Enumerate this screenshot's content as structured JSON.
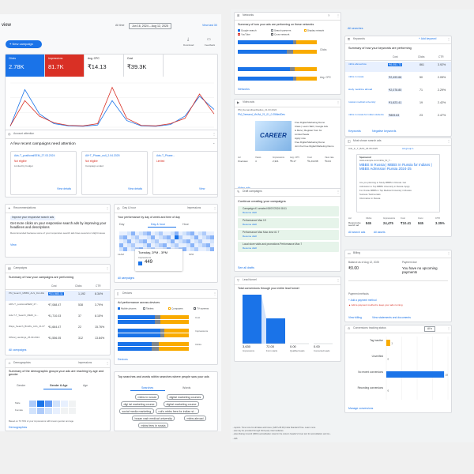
{
  "overview": {
    "title": "view",
    "all_time": "All time",
    "date_range": "Jun 16, 2024 – Aug 12, 2025",
    "view_last": "View last 30",
    "new_campaign": "New campaign",
    "download": "Download",
    "feedback": "Feedback",
    "metrics": [
      {
        "label": "Clicks",
        "value": "2.78K",
        "bg": "#1a73e8",
        "fg": "#ffffff"
      },
      {
        "label": "Impressions",
        "value": "81.7K",
        "bg": "#d93025",
        "fg": "#ffffff"
      },
      {
        "label": "Avg. CPC",
        "value": "₹14.13",
        "bg": "#ffffff",
        "fg": "#202124"
      },
      {
        "label": "Cost",
        "value": "₹39.3K",
        "bg": "#ffffff",
        "fg": "#202124"
      }
    ],
    "chart_x_left": "Jun 16, 2024",
    "chart_x_right": "Aug 12, 2025"
  },
  "chart_data": {
    "type": "line",
    "x": [
      0,
      1,
      2,
      3,
      4,
      5,
      6,
      7,
      8,
      9,
      10,
      11,
      12,
      13,
      14
    ],
    "series": [
      {
        "name": "Clicks",
        "color": "#1a73e8",
        "values": [
          2,
          85,
          30,
          8,
          3,
          2,
          5,
          60,
          15,
          3,
          2,
          6,
          25,
          70,
          40
        ]
      },
      {
        "name": "Impressions",
        "color": "#d93025",
        "values": [
          3,
          60,
          25,
          10,
          4,
          3,
          8,
          90,
          20,
          4,
          3,
          8,
          20,
          75,
          30
        ]
      }
    ],
    "ylim": [
      0,
      100
    ]
  },
  "account_attention": {
    "header": "Account attention",
    "title": "A few recent campaigns need attention",
    "items": [
      {
        "name": "Ads-T_positionalSEM_27.03.2024",
        "status": "Not eligible",
        "sub": "Limited by budget",
        "link": "View details"
      },
      {
        "name": "All+T_Phase_null_2.04.2025",
        "status": "Not eligible",
        "sub": "Campaign ended",
        "link": "View details"
      },
      {
        "name": "Ads-T_Phase...",
        "status": "Limited",
        "sub": "",
        "link": "View"
      }
    ]
  },
  "recommendations": {
    "header": "Recommendations",
    "badge": "Improve your responsive search ads",
    "title": "Get more clicks on your responsive search ads by improving your headlines and descriptions",
    "desc": "Recommended because some of your responsive search ads have several or slight issues",
    "view": "View"
  },
  "day_hour": {
    "header": "Day & hour",
    "dropdown": "Impressions",
    "title": "Your performance by day of week and time of day",
    "tabs": [
      "Day",
      "Day & hour",
      "Hour"
    ],
    "hours": [
      "12AM",
      "6AM",
      "12PM",
      "6PM"
    ],
    "tooltip_time": "Tuesday, 2PM - 3PM",
    "tooltip_metric": "Impressions",
    "tooltip_value": "449",
    "all_campaigns": "All campaigns"
  },
  "campaigns": {
    "header": "Campaigns",
    "title": "Summary of how your campaigns are performing",
    "cols": [
      "Cost",
      "Clicks",
      "CTR"
    ],
    "rows": [
      {
        "name": "PM_Search_MBBS_ALS_DLADE",
        "cost": "₹11,583.11",
        "clicks": "1,192",
        "ctr": "8.34%"
      },
      {
        "name": "ADS-T_positionalSEM_27...",
        "cost": "₹7,088.47",
        "clicks": "538",
        "ctr": "3.79%"
      },
      {
        "name": "Ads-T-T_Search_MEDI_G...",
        "cost": "₹1,710.03",
        "clicks": "37",
        "ctr": "8.15%"
      },
      {
        "name": "Ways_Search_Bindfiv_Ad's_21.07.2024",
        "cost": "₹1,664.47",
        "clicks": "22",
        "ctr": "15.76%"
      },
      {
        "name": "Offical_Landings_25.09.2024",
        "cost": "₹1,556.05",
        "clicks": "312",
        "ctr": "13.84%"
      }
    ],
    "link": "All campaigns"
  },
  "devices": {
    "header": "Devices",
    "title": "Ad performance across devices",
    "legend": [
      "Mobile phones",
      "Tablets",
      "Computers",
      "TV screens"
    ],
    "dd1": "Cost",
    "dd2": "Impressions",
    "dd3": "Clicks",
    "link": "Devices"
  },
  "demographics": {
    "header": "Demographics",
    "dropdown": "Impressions",
    "title": "Summary of the demographic groups your ads are reaching by age and gender",
    "tabs": [
      "Gender",
      "Gender & Age",
      "Age"
    ],
    "row_labels": [
      "Male",
      "Female"
    ],
    "note": "Based on 70.70% of your impressions with known gender and age",
    "link": "Demographics"
  },
  "search_terms": {
    "title": "Top searches and words within searches where people saw your ads",
    "tabs": [
      "Searches",
      "Words"
    ],
    "chips": [
      "mbbs in russia",
      "digital marketing courses",
      "digi tal marketing course",
      "digital marketing course",
      "social media marketing",
      "ruk's mbbs fees for indian st...",
      "busan rash medical university",
      "mbbs abroad",
      "mbbs fees in russia"
    ]
  },
  "networks": {
    "header": "Networks",
    "title": "Summary of how your ads are performing on these networks",
    "legend": [
      "Google search",
      "Search partners",
      "Display network",
      "YouTube",
      "Cross-network"
    ],
    "dd_clicks": "Clicks",
    "dd_ctr": "Avg. CPC",
    "link": "Networks"
  },
  "video_ads": {
    "header": "Video ads",
    "item": "PM_DemandGenRadius_21.03.2024",
    "subitem": "PM_Demand_Vis'Ad_21_01_0.25MedDes",
    "thumb_text": "CAREER",
    "desc": [
      "Free Digital Marketing Demo",
      "Class | Learn SEO, Google Ads",
      "& More | Register from for",
      "Limited Seats",
      "Apply now",
      "Free Digital Marketing Demo",
      "Join the Free Digital Marketing Demo"
    ],
    "cols": [
      "Ad",
      "Views",
      "Impressions",
      "Avg. CPV",
      "Cost",
      "View rate"
    ],
    "vals": [
      "Overview",
      "4",
      "2,321",
      "₹5.17",
      "₹1,210.68",
      "₹4.04"
    ],
    "link": "Video ads"
  },
  "draft": {
    "header": "Draft campaigns",
    "title": "Continue creating your campaigns",
    "items": [
      {
        "name": "Campaign #1 created 08/07/2024 08:11",
        "sub": "Resume draft"
      },
      {
        "name": "Performance Max 19",
        "sub": "Resume draft"
      },
      {
        "name": "Performance Max Max view #1 T",
        "sub": "Resume draft"
      },
      {
        "name": "Local store visits and promotions Performance Max 7",
        "sub": "Resume draft"
      }
    ],
    "link": "See all drafts"
  },
  "lead_funnel": {
    "header": "Lead funnel",
    "title": "Total conversions through your entire lead funnel",
    "cols": [
      "Impressions",
      "Form starts",
      "Qualified leads",
      "Converted leads"
    ],
    "vals": [
      "3,630",
      "72.00",
      "0.00",
      "0.00"
    ]
  },
  "keywords": {
    "all_searches": "All searches",
    "header": "Keywords",
    "add": "Add keyword",
    "title": "Summary of how your keywords are performing",
    "cols": [
      "Cost",
      "Clicks",
      "CTR"
    ],
    "rows": [
      {
        "name": "mbbs abroad low",
        "cost": "₹6,051.72",
        "clicks": "861",
        "ctr": "3.92%"
      },
      {
        "name": "mbbs in russia",
        "cost": "₹2,493.66",
        "clicks": "50",
        "ctr": "2.05%"
      },
      {
        "name": "study medicine abroad",
        "cost": "₹2,078.80",
        "clicks": "71",
        "ctr": "2.29%"
      },
      {
        "name": "russian medical university",
        "cost": "₹1,623.41",
        "clicks": "19",
        "ctr": "2.42%"
      },
      {
        "name": "mbbs in russia for indian students",
        "cost": "₹809.63",
        "clicks": "23",
        "ctr": "2.47%"
      }
    ],
    "link1": "Keywords",
    "link2": "Negative keywords"
  },
  "most_shown": {
    "header": "Most shown search ads",
    "item": "Ads_in_T_BAS_26.08.2025",
    "group": "Ad group 1",
    "ad_label": "Sponsored",
    "ad_url": "www.example.com/mbbs_IN_T...",
    "ad_headline": "MBBS In Russia | MBBS In Russia for Indians | MBBS Admission Russia 2024-25",
    "ad_desc": [
      "Are you planning to Study MBBS in Russia. Get",
      "Admission to Top MBBS University in Russia. Apply",
      "For Onsite MBBS in Top Medical University in Russia",
      "Success Testimonials",
      "Information in Russia"
    ],
    "cols": [
      "Ad",
      "Clicks",
      "Impressions",
      "Cost",
      "Conv.",
      "CTR"
    ],
    "vals": [
      "Responsive search ad",
      "845",
      "24,475",
      "₹10.41",
      "845",
      "3.35%"
    ],
    "link1": "All search ads",
    "link2": "All assets"
  },
  "billing": {
    "header": "Billing",
    "balance_label": "Balance as of Aug 12, 2025",
    "balance": "₹0.00",
    "payment_label": "Payment due",
    "payment": "You have no upcoming payments",
    "method_header": "Payment methods",
    "add_method": "Add a payment method",
    "warning": "Add a payment method to keep your ads running",
    "link1": "View billing",
    "link2": "View statements and documents"
  },
  "conversions": {
    "header": "Conversions tracking status",
    "dropdown": "All",
    "labels": [
      "Tag inactive",
      "Unverified",
      "No recent conversions",
      "Recording conversions"
    ],
    "values": [
      1,
      0,
      15,
      0
    ],
    "link": "Manage conversions"
  },
  "footer": {
    "line1": "...reports. Time zone for all dates and times: (GMT+05:30) India Standard Time. Learn more",
    "line2": "...ata may be provided through third-party intermediaries.",
    "line3": "...ative Rating Council (MRC) accreditation noted in the column header's hover text for accreditation and tra...",
    "line4": "...025"
  }
}
